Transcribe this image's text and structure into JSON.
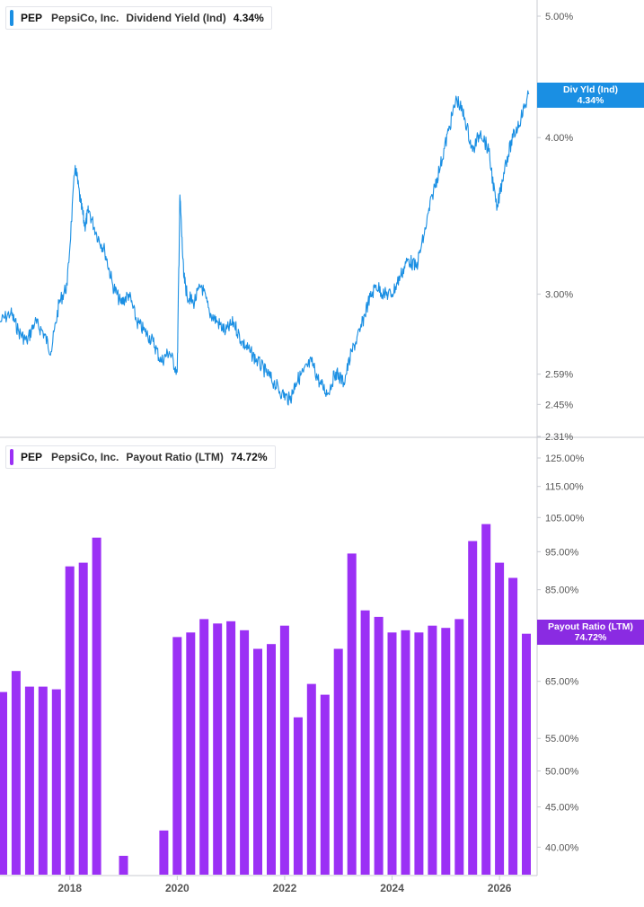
{
  "top_panel": {
    "legend": {
      "ticker": "PEP",
      "company": "PepsiCo, Inc.",
      "metric": "Dividend Yield (Ind)",
      "value": "4.34%"
    },
    "tag": {
      "label": "Div Yld (Ind)",
      "value": "4.34%"
    }
  },
  "bottom_panel": {
    "legend": {
      "ticker": "PEP",
      "company": "PepsiCo, Inc.",
      "metric": "Payout Ratio (LTM)",
      "value": "74.72%"
    },
    "tag": {
      "label": "Payout Ratio (LTM)",
      "value": "74.72%"
    }
  },
  "colors": {
    "yield_line": "#1a8fe3",
    "payout_bar": "#9b30f5",
    "yield_tag": "#1a8fe3",
    "payout_tag": "#8a2be2",
    "axis": "#c8cbd2",
    "tick_text": "#555555"
  },
  "chart_data": [
    {
      "type": "line",
      "x_label": "",
      "y_label": "",
      "y_scale": "log",
      "ylim": [
        2.31,
        5.0
      ],
      "y_ticks": [
        "5.00%",
        "4.00%",
        "3.00%",
        "2.59%",
        "2.45%",
        "2.31%"
      ],
      "y_tick_values": [
        5.0,
        4.0,
        3.0,
        2.59,
        2.45,
        2.31
      ],
      "xlim": [
        2016.7,
        2026.7
      ],
      "series": [
        {
          "x": [
            2016.7,
            2016.9,
            2017.05,
            2017.2,
            2017.35,
            2017.5,
            2017.65,
            2017.8,
            2017.95,
            2018.1,
            2018.2,
            2018.28,
            2018.35,
            2018.5,
            2018.65,
            2018.8,
            2018.95,
            2019.1,
            2019.25,
            2019.4,
            2019.55,
            2019.7,
            2019.85,
            2020.0,
            2020.05,
            2020.12,
            2020.18,
            2020.3,
            2020.45,
            2020.6,
            2020.75,
            2020.9,
            2021.05,
            2021.2,
            2021.35,
            2021.5,
            2021.65,
            2021.8,
            2021.95,
            2022.1,
            2022.2,
            2022.35,
            2022.5,
            2022.65,
            2022.8,
            2022.95,
            2023.1,
            2023.25,
            2023.4,
            2023.55,
            2023.7,
            2023.85,
            2024.0,
            2024.15,
            2024.3,
            2024.45,
            2024.6,
            2024.75,
            2024.9,
            2025.05,
            2025.2,
            2025.35,
            2025.5,
            2025.65,
            2025.8,
            2025.95,
            2026.1,
            2026.25,
            2026.4,
            2026.55
          ],
          "values": [
            2.85,
            2.9,
            2.8,
            2.75,
            2.85,
            2.8,
            2.7,
            2.95,
            3.05,
            3.8,
            3.55,
            3.4,
            3.5,
            3.35,
            3.25,
            3.05,
            2.95,
            3.0,
            2.85,
            2.8,
            2.75,
            2.65,
            2.7,
            2.6,
            3.6,
            3.1,
            3.0,
            2.95,
            3.05,
            2.9,
            2.85,
            2.8,
            2.85,
            2.75,
            2.7,
            2.65,
            2.6,
            2.55,
            2.5,
            2.47,
            2.55,
            2.6,
            2.65,
            2.55,
            2.5,
            2.6,
            2.55,
            2.7,
            2.8,
            2.95,
            3.05,
            3.0,
            3.0,
            3.1,
            3.2,
            3.15,
            3.35,
            3.6,
            3.8,
            4.05,
            4.3,
            4.15,
            3.9,
            4.05,
            3.9,
            3.5,
            3.8,
            4.0,
            4.15,
            4.34
          ]
        }
      ]
    },
    {
      "type": "bar",
      "x_label": "",
      "y_label": "",
      "y_scale": "log",
      "ylim": [
        37.0,
        125.0
      ],
      "y_ticks": [
        "125.00%",
        "115.00%",
        "105.00%",
        "95.00%",
        "85.00%",
        "65.00%",
        "55.00%",
        "50.00%",
        "45.00%",
        "40.00%"
      ],
      "y_tick_values": [
        125,
        115,
        105,
        95,
        85,
        65,
        55,
        50,
        45,
        40
      ],
      "x_ticks": [
        "2018",
        "2020",
        "2022",
        "2024",
        "2026"
      ],
      "x_tick_values": [
        2018.0,
        2020.0,
        2022.0,
        2024.0,
        2026.0
      ],
      "xlim": [
        2016.7,
        2026.7
      ],
      "series": [
        {
          "x": [
            2016.75,
            2017.0,
            2017.25,
            2017.5,
            2017.75,
            2018.0,
            2018.25,
            2018.5,
            2019.0,
            2019.75,
            2020.0,
            2020.25,
            2020.5,
            2020.75,
            2021.0,
            2021.25,
            2021.5,
            2021.75,
            2022.0,
            2022.25,
            2022.5,
            2022.75,
            2023.0,
            2023.25,
            2023.5,
            2023.75,
            2024.0,
            2024.25,
            2024.5,
            2024.75,
            2025.0,
            2025.25,
            2025.5,
            2025.75,
            2026.0,
            2026.25,
            2026.5
          ],
          "values": [
            63.0,
            67.0,
            64.0,
            64.0,
            63.5,
            91.0,
            92.0,
            99.0,
            39.0,
            42.0,
            74.0,
            75.0,
            78.0,
            77.0,
            77.5,
            75.5,
            71.5,
            72.5,
            76.5,
            58.5,
            64.5,
            62.5,
            71.5,
            94.5,
            80.0,
            78.5,
            75.0,
            75.5,
            75.0,
            76.5,
            76.0,
            78.0,
            98.0,
            103.0,
            92.0,
            88.0,
            74.72
          ]
        }
      ]
    }
  ]
}
